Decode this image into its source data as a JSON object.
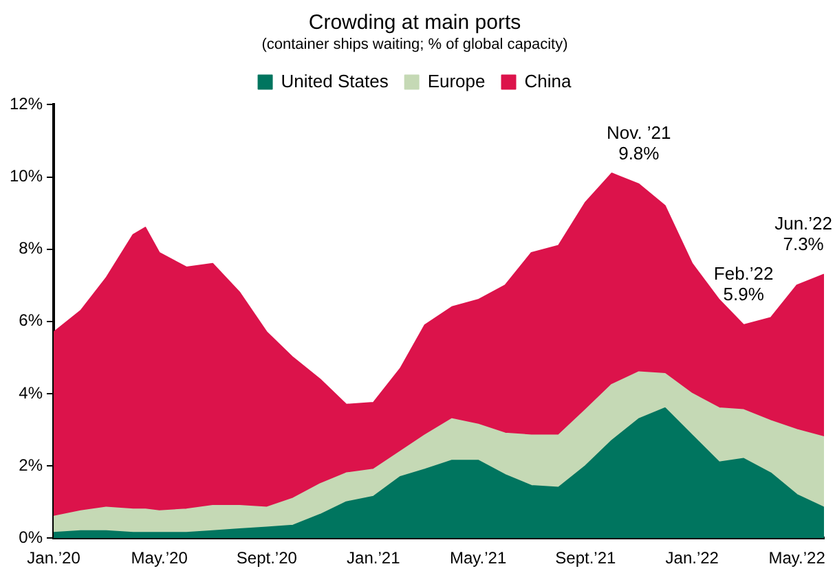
{
  "chart_data": {
    "type": "area",
    "title": "Crowding at main ports",
    "subtitle": "(container ships waiting; % of global capacity)",
    "stacked": true,
    "legend": "top",
    "grid": false,
    "x": [
      "2020-01-01",
      "2020-02-01",
      "2020-03-01",
      "2020-04-01",
      "2020-04-15",
      "2020-05-01",
      "2020-06-01",
      "2020-07-01",
      "2020-08-01",
      "2020-09-01",
      "2020-10-01",
      "2020-11-01",
      "2020-12-01",
      "2021-01-01",
      "2021-02-01",
      "2021-03-01",
      "2021-04-01",
      "2021-05-01",
      "2021-06-01",
      "2021-07-01",
      "2021-08-01",
      "2021-09-01",
      "2021-10-01",
      "2021-11-01",
      "2021-12-01",
      "2022-01-01",
      "2022-02-01",
      "2022-03-01",
      "2022-04-01",
      "2022-05-01",
      "2022-06-01"
    ],
    "series": [
      {
        "name": "United States",
        "color": "#00755f",
        "values": [
          0.15,
          0.2,
          0.2,
          0.15,
          0.15,
          0.15,
          0.15,
          0.2,
          0.25,
          0.3,
          0.35,
          0.65,
          1.0,
          1.15,
          1.7,
          1.9,
          2.15,
          2.15,
          1.75,
          1.45,
          1.4,
          2.0,
          2.7,
          3.3,
          3.6,
          2.85,
          2.1,
          2.2,
          1.8,
          1.2,
          0.85
        ]
      },
      {
        "name": "Europe",
        "color": "#c5d9b5",
        "values": [
          0.45,
          0.55,
          0.65,
          0.65,
          0.65,
          0.6,
          0.65,
          0.7,
          0.65,
          0.55,
          0.75,
          0.85,
          0.8,
          0.75,
          0.7,
          0.95,
          1.15,
          1.0,
          1.15,
          1.4,
          1.45,
          1.55,
          1.55,
          1.3,
          0.95,
          1.15,
          1.5,
          1.35,
          1.45,
          1.8,
          1.95
        ]
      },
      {
        "name": "China",
        "color": "#dc134b",
        "values": [
          5.1,
          5.55,
          6.35,
          7.6,
          7.8,
          7.15,
          6.7,
          6.7,
          5.9,
          4.85,
          3.9,
          2.9,
          1.9,
          1.85,
          2.3,
          3.05,
          3.1,
          3.45,
          4.1,
          5.05,
          5.25,
          5.75,
          5.85,
          5.2,
          4.65,
          3.6,
          3.0,
          2.35,
          2.85,
          4.0,
          4.5
        ]
      }
    ],
    "xlim": [
      "2020-01-01",
      "2022-06-01"
    ],
    "xticks": [
      {
        "value": "2020-01-01",
        "label": "Jan.’20"
      },
      {
        "value": "2020-05-01",
        "label": "May.’20"
      },
      {
        "value": "2020-09-01",
        "label": "Sept.’20"
      },
      {
        "value": "2021-01-01",
        "label": "Jan.’21"
      },
      {
        "value": "2021-05-01",
        "label": "May.’21"
      },
      {
        "value": "2021-09-01",
        "label": "Sept.’21"
      },
      {
        "value": "2022-01-01",
        "label": "Jan.’22"
      },
      {
        "value": "2022-05-01",
        "label": "May.’22"
      }
    ],
    "ylim": [
      0,
      12
    ],
    "yticks": [
      {
        "value": 0,
        "label": "0%"
      },
      {
        "value": 2,
        "label": "2%"
      },
      {
        "value": 4,
        "label": "4%"
      },
      {
        "value": 6,
        "label": "6%"
      },
      {
        "value": 8,
        "label": "8%"
      },
      {
        "value": 10,
        "label": "10%"
      },
      {
        "value": 12,
        "label": "12%"
      }
    ],
    "annotations": [
      {
        "text": "Nov. ’21\n9.8%",
        "x": "2021-11-01",
        "y": 9.8
      },
      {
        "text": "Feb.’22\n5.9%",
        "x": "2022-03-01",
        "y": 5.9
      },
      {
        "text": "Jun.’22\n7.3%",
        "x": "2022-06-01",
        "y": 7.3
      }
    ]
  }
}
